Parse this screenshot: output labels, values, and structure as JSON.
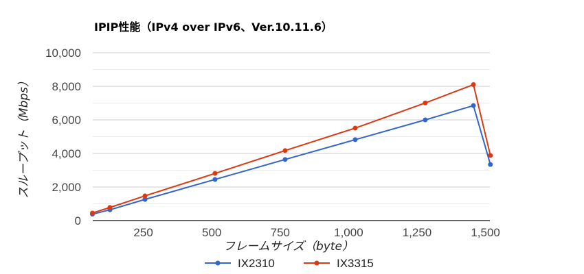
{
  "chart_data": {
    "type": "line",
    "title": "IPIP性能（IPv4 over IPv6、Ver.10.11.6）",
    "xlabel": "フレームサイズ（byte）",
    "ylabel": "スループット（Mbps）",
    "xlim": [
      64,
      1518
    ],
    "ylim": [
      0,
      10000
    ],
    "x_ticks": [
      250,
      500,
      750,
      1000,
      1250,
      1500
    ],
    "x_tick_labels": [
      "250",
      "500",
      "750",
      "1,000",
      "1,250",
      "1,500"
    ],
    "y_ticks": [
      0,
      2000,
      4000,
      6000,
      8000,
      10000
    ],
    "y_tick_labels": [
      "0",
      "2,000",
      "4,000",
      "6,000",
      "8,000",
      "10,000"
    ],
    "grid": true,
    "legend_position": "bottom",
    "x": [
      64,
      128,
      256,
      512,
      768,
      1024,
      1280,
      1456,
      1518
    ],
    "series": [
      {
        "name": "IX2310",
        "color": "#3366cc",
        "values": [
          380,
          640,
          1260,
          2450,
          3640,
          4820,
          6000,
          6850,
          3340
        ]
      },
      {
        "name": "IX3315",
        "color": "#dc3912",
        "values": [
          450,
          780,
          1470,
          2810,
          4170,
          5510,
          7010,
          8100,
          3880
        ]
      }
    ]
  }
}
